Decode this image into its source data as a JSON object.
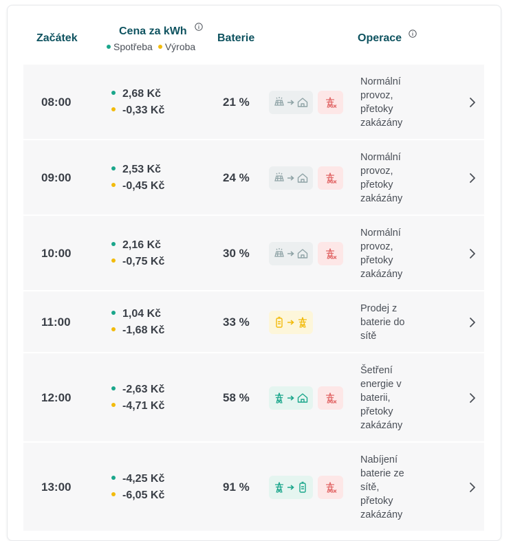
{
  "header": {
    "start_label": "Začátek",
    "price_label": "Cena za kWh",
    "legend_consumption": "Spotřeba",
    "legend_production": "Výroba",
    "battery_label": "Baterie",
    "operation_label": "Operace"
  },
  "colors": {
    "consumption_dot": "#1aa68b",
    "production_dot": "#f2bb0c",
    "header_text": "#0f5360",
    "grid_red": "#e26a6a"
  },
  "rows": [
    {
      "time": "08:00",
      "consumption": "2,68 Kč",
      "production": "-0,33 Kč",
      "battery": "21 %",
      "flow_icon": "solar-to-home",
      "flow_style": "gray",
      "grid_blocked": true,
      "operation": [
        "Normální",
        "provoz,",
        "přetoky",
        "zakázány"
      ]
    },
    {
      "time": "09:00",
      "consumption": "2,53 Kč",
      "production": "-0,45 Kč",
      "battery": "24 %",
      "flow_icon": "solar-to-home",
      "flow_style": "gray",
      "grid_blocked": true,
      "operation": [
        "Normální",
        "provoz,",
        "přetoky",
        "zakázány"
      ]
    },
    {
      "time": "10:00",
      "consumption": "2,16 Kč",
      "production": "-0,75 Kč",
      "battery": "30 %",
      "flow_icon": "solar-to-home",
      "flow_style": "gray",
      "grid_blocked": true,
      "operation": [
        "Normální",
        "provoz,",
        "přetoky",
        "zakázány"
      ]
    },
    {
      "time": "11:00",
      "consumption": "1,04 Kč",
      "production": "-1,68 Kč",
      "battery": "33 %",
      "flow_icon": "battery-to-grid",
      "flow_style": "yellow",
      "grid_blocked": false,
      "operation": [
        "Prodej z",
        "baterie do",
        "sítě"
      ]
    },
    {
      "time": "12:00",
      "consumption": "-2,63 Kč",
      "production": "-4,71 Kč",
      "battery": "58 %",
      "flow_icon": "grid-to-home",
      "flow_style": "green",
      "grid_blocked": true,
      "operation": [
        "Šetření",
        "energie v",
        "baterii,",
        "přetoky",
        "zakázány"
      ]
    },
    {
      "time": "13:00",
      "consumption": "-4,25 Kč",
      "production": "-6,05 Kč",
      "battery": "91 %",
      "flow_icon": "grid-to-battery",
      "flow_style": "green",
      "grid_blocked": true,
      "operation": [
        "Nabíjení",
        "baterie ze",
        "sítě,",
        "přetoky",
        "zakázány"
      ]
    }
  ]
}
